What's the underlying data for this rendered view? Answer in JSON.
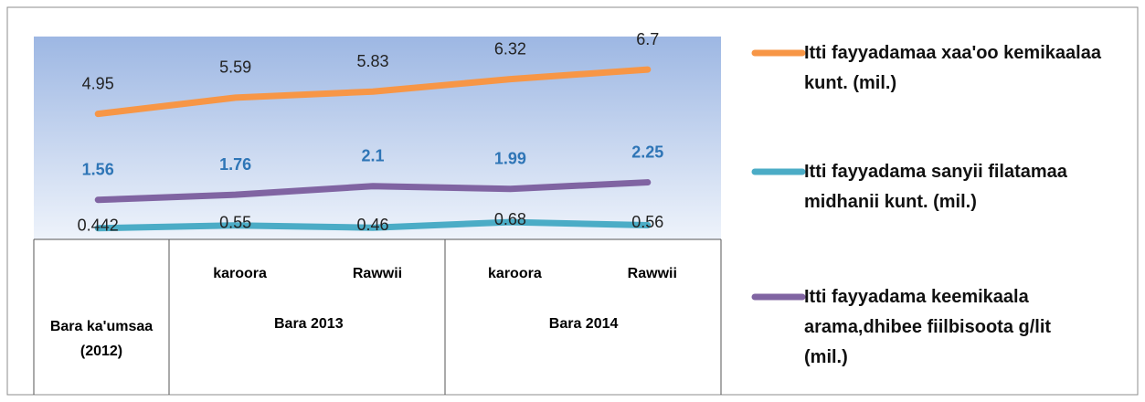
{
  "chart_data": {
    "type": "line",
    "categories": [
      "Bara ka'umsaa (2012)",
      "karoora",
      "Rawwii",
      "karoora",
      "Rawwii"
    ],
    "category_groups": [
      "Bara 2013",
      "Bara 2014"
    ],
    "series": [
      {
        "name": "Itti fayyadamaa xaa'oo kemikaalaa  kunt. (mil.)",
        "color": "#f79646",
        "label_color": "#222222",
        "values": [
          4.95,
          5.59,
          5.83,
          6.32,
          6.7
        ]
      },
      {
        "name": "Itti fayyadama sanyii filatamaa midhanii kunt. (mil.)",
        "color": "#4bacc6",
        "label_color": "#222222",
        "values": [
          0.442,
          0.55,
          0.46,
          0.68,
          0.56
        ]
      },
      {
        "name": "Itti fayyadama keemikaala arama,dhibee fiilbisoota g/lit (mil.)",
        "color": "#8064a2",
        "label_color": "#2e75b6",
        "values": [
          1.56,
          1.76,
          2.1,
          1.99,
          2.25
        ]
      }
    ],
    "ylim": [
      0,
      8
    ]
  }
}
